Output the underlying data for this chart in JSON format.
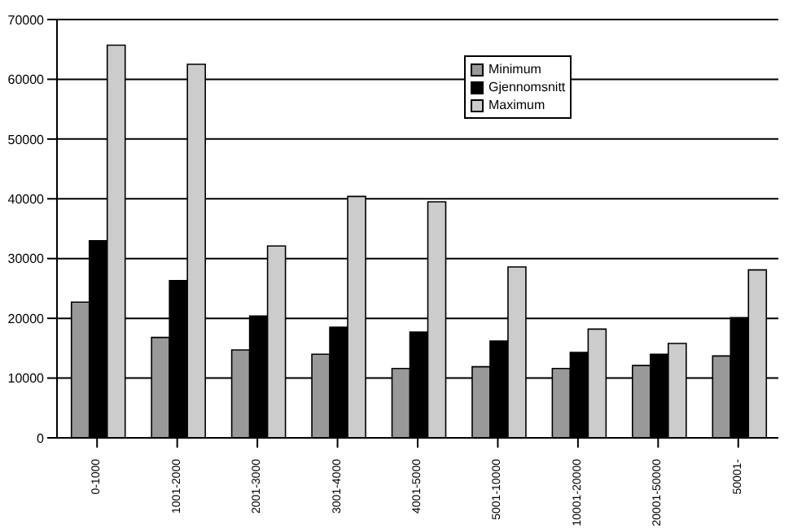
{
  "chart_data": {
    "type": "bar",
    "categories": [
      "0-1000",
      "1001-2000",
      "2001-3000",
      "3001-4000",
      "4001-5000",
      "5001-10000",
      "10001-20000",
      "20001-50000",
      "50001-"
    ],
    "series": [
      {
        "name": "Minimum",
        "color": "#999999",
        "values": [
          22700,
          16800,
          14700,
          14000,
          11600,
          11900,
          11600,
          12100,
          13700
        ]
      },
      {
        "name": "Gjennomsnitt",
        "color": "#000000",
        "values": [
          33000,
          26300,
          20400,
          18500,
          17700,
          16200,
          14300,
          14000,
          20100
        ]
      },
      {
        "name": "Maximum",
        "color": "#cccccc",
        "values": [
          65700,
          62500,
          32100,
          40400,
          39500,
          28600,
          18200,
          15800,
          28100
        ]
      }
    ],
    "ylim": [
      0,
      70000
    ],
    "yticks": [
      0,
      10000,
      20000,
      30000,
      40000,
      50000,
      60000,
      70000
    ],
    "grid": "y",
    "legend": "top right"
  }
}
